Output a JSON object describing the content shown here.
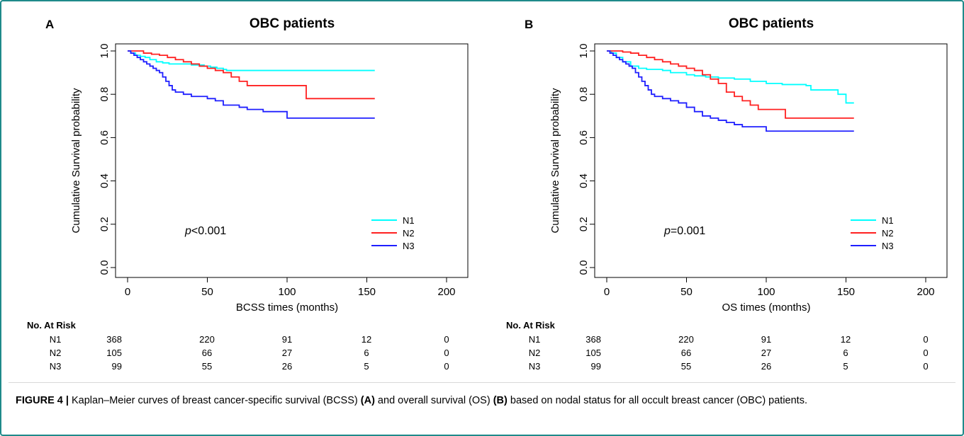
{
  "caption": {
    "label": "FIGURE 4 |",
    "part1": " Kaplan–Meier curves of breast cancer-specific survival (BCSS) ",
    "ref_a": "(A)",
    "part2": " and overall survival (OS) ",
    "ref_b": "(B)",
    "part3": " based on nodal status for all occult breast cancer (OBC) patients."
  },
  "chart_data": [
    {
      "type": "line",
      "panel_label": "A",
      "title": "OBC patients",
      "xlabel": "BCSS times (months)",
      "ylabel": "Cumulative Survival probability",
      "xlim": [
        0,
        200
      ],
      "ylim": [
        0,
        1
      ],
      "xticks": [
        0,
        50,
        100,
        150,
        200
      ],
      "yticks": [
        0.0,
        0.2,
        0.4,
        0.6,
        0.8,
        1.0
      ],
      "ytick_labels": [
        "0.0",
        "0.2",
        "0.4",
        "0.6",
        "0.8",
        "1.0"
      ],
      "legend_position": "bottom-right",
      "annotation": {
        "italic": "p",
        "text": "<0.001"
      },
      "colors": {
        "N1": "#00ffff",
        "N2": "#ff2020",
        "N3": "#1f1fff"
      },
      "series": [
        {
          "name": "N1",
          "x": [
            0,
            2,
            5,
            8,
            11,
            14,
            18,
            22,
            26,
            32,
            40,
            48,
            52,
            56,
            60,
            62,
            155
          ],
          "y": [
            1.0,
            0.99,
            0.98,
            0.975,
            0.97,
            0.96,
            0.95,
            0.945,
            0.94,
            0.94,
            0.935,
            0.93,
            0.925,
            0.92,
            0.915,
            0.91,
            0.91
          ]
        },
        {
          "name": "N2",
          "x": [
            0,
            5,
            10,
            15,
            20,
            25,
            30,
            35,
            40,
            45,
            50,
            55,
            60,
            65,
            70,
            75,
            112,
            155
          ],
          "y": [
            1.0,
            1.0,
            0.99,
            0.985,
            0.98,
            0.97,
            0.96,
            0.95,
            0.94,
            0.93,
            0.92,
            0.91,
            0.9,
            0.88,
            0.86,
            0.84,
            0.78,
            0.78
          ]
        },
        {
          "name": "N3",
          "x": [
            0,
            2,
            4,
            6,
            8,
            10,
            12,
            14,
            16,
            18,
            20,
            22,
            24,
            26,
            28,
            30,
            35,
            40,
            50,
            55,
            60,
            70,
            75,
            85,
            100,
            155
          ],
          "y": [
            1.0,
            0.99,
            0.98,
            0.97,
            0.96,
            0.95,
            0.94,
            0.93,
            0.92,
            0.91,
            0.9,
            0.88,
            0.86,
            0.84,
            0.82,
            0.81,
            0.8,
            0.79,
            0.78,
            0.77,
            0.75,
            0.74,
            0.73,
            0.72,
            0.69,
            0.69
          ]
        }
      ],
      "risk_table": {
        "header": "No. At Risk",
        "time_points": [
          0,
          50,
          100,
          150,
          200
        ],
        "rows": [
          {
            "label": "N1",
            "values": [
              "368",
              "220",
              "91",
              "12",
              "0"
            ]
          },
          {
            "label": "N2",
            "values": [
              "105",
              "66",
              "27",
              "6",
              "0"
            ]
          },
          {
            "label": "N3",
            "values": [
              "99",
              "55",
              "26",
              "5",
              "0"
            ]
          }
        ]
      }
    },
    {
      "type": "line",
      "panel_label": "B",
      "title": "OBC patients",
      "xlabel": "OS times (months)",
      "ylabel": "Cumulative Survival probability",
      "xlim": [
        0,
        200
      ],
      "ylim": [
        0,
        1
      ],
      "xticks": [
        0,
        50,
        100,
        150,
        200
      ],
      "yticks": [
        0.0,
        0.2,
        0.4,
        0.6,
        0.8,
        1.0
      ],
      "ytick_labels": [
        "0.0",
        "0.2",
        "0.4",
        "0.6",
        "0.8",
        "1.0"
      ],
      "legend_position": "bottom-right",
      "annotation": {
        "italic": "p",
        "text": "=0.001"
      },
      "colors": {
        "N1": "#00ffff",
        "N2": "#ff2020",
        "N3": "#1f1fff"
      },
      "series": [
        {
          "name": "N1",
          "x": [
            0,
            3,
            6,
            10,
            15,
            20,
            25,
            35,
            40,
            50,
            55,
            62,
            70,
            80,
            90,
            100,
            110,
            125,
            128,
            135,
            145,
            150,
            155
          ],
          "y": [
            1.0,
            0.99,
            0.97,
            0.95,
            0.93,
            0.92,
            0.915,
            0.91,
            0.9,
            0.89,
            0.885,
            0.88,
            0.875,
            0.87,
            0.86,
            0.85,
            0.845,
            0.84,
            0.82,
            0.82,
            0.8,
            0.76,
            0.76
          ]
        },
        {
          "name": "N2",
          "x": [
            0,
            5,
            10,
            15,
            20,
            25,
            30,
            35,
            40,
            45,
            50,
            55,
            60,
            65,
            70,
            75,
            80,
            85,
            90,
            95,
            112,
            155
          ],
          "y": [
            1.0,
            1.0,
            0.995,
            0.99,
            0.98,
            0.97,
            0.96,
            0.95,
            0.94,
            0.93,
            0.92,
            0.91,
            0.89,
            0.87,
            0.85,
            0.81,
            0.79,
            0.77,
            0.75,
            0.73,
            0.69,
            0.69
          ]
        },
        {
          "name": "N3",
          "x": [
            0,
            2,
            4,
            6,
            8,
            10,
            12,
            14,
            16,
            18,
            20,
            22,
            24,
            26,
            28,
            30,
            35,
            40,
            45,
            50,
            55,
            60,
            65,
            70,
            75,
            80,
            85,
            100,
            155
          ],
          "y": [
            1.0,
            0.99,
            0.98,
            0.97,
            0.96,
            0.95,
            0.94,
            0.93,
            0.92,
            0.9,
            0.88,
            0.86,
            0.84,
            0.82,
            0.8,
            0.79,
            0.78,
            0.77,
            0.76,
            0.74,
            0.72,
            0.7,
            0.69,
            0.68,
            0.67,
            0.66,
            0.65,
            0.63,
            0.63
          ]
        }
      ],
      "risk_table": {
        "header": "No. At Risk",
        "time_points": [
          0,
          50,
          100,
          150,
          200
        ],
        "rows": [
          {
            "label": "N1",
            "values": [
              "368",
              "220",
              "91",
              "12",
              "0"
            ]
          },
          {
            "label": "N2",
            "values": [
              "105",
              "66",
              "27",
              "6",
              "0"
            ]
          },
          {
            "label": "N3",
            "values": [
              "99",
              "55",
              "26",
              "5",
              "0"
            ]
          }
        ]
      }
    }
  ]
}
